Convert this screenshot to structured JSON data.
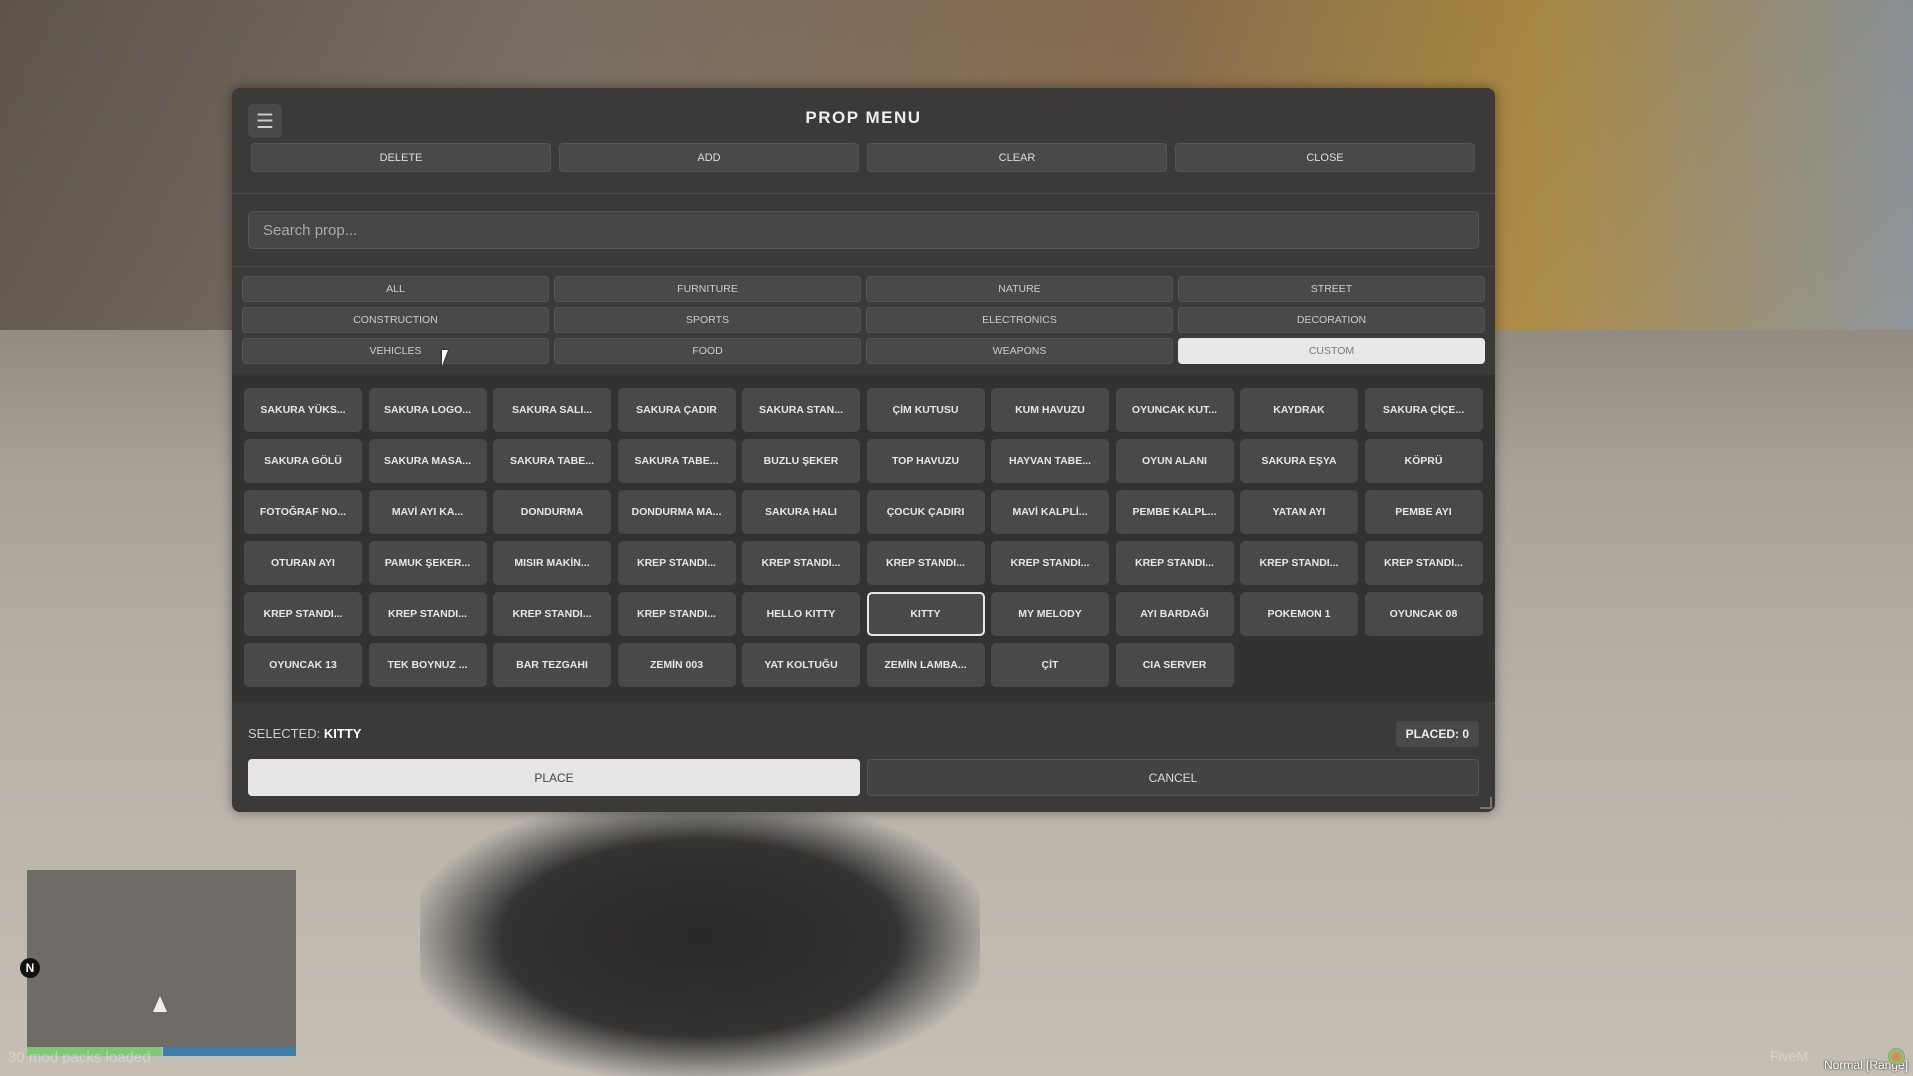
{
  "panel": {
    "title": "PROP MENU",
    "menu_icon": "hamburger-icon"
  },
  "toolbar": {
    "delete": "DELETE",
    "add": "ADD",
    "clear": "CLEAR",
    "close": "CLOSE"
  },
  "search": {
    "placeholder": "Search prop...",
    "value": ""
  },
  "categories": [
    "ALL",
    "FURNITURE",
    "NATURE",
    "STREET",
    "CONSTRUCTION",
    "SPORTS",
    "ELECTRONICS",
    "DECORATION",
    "VEHICLES",
    "FOOD",
    "WEAPONS",
    "CUSTOM"
  ],
  "active_category": "CUSTOM",
  "props": [
    "SAKURA YÜKS...",
    "SAKURA LOGO...",
    "SAKURA SALI...",
    "SAKURA ÇADIR",
    "SAKURA STAN...",
    "ÇİM KUTUSU",
    "KUM HAVUZU",
    "OYUNCAK KUT...",
    "KAYDRAK",
    "SAKURA ÇİÇE...",
    "SAKURA GÖLÜ",
    "SAKURA MASA...",
    "SAKURA TABE...",
    "SAKURA TABE...",
    "BUZLU ŞEKER",
    "TOP HAVUZU",
    "HAYVAN TABE...",
    "OYUN ALANI",
    "SAKURA EŞYA",
    "KÖPRÜ",
    "FOTOĞRAF NO...",
    "MAVİ AYI KA...",
    "DONDURMA",
    "DONDURMA MA...",
    "SAKURA HALI",
    "ÇOCUK ÇADIRI",
    "MAVİ KALPLİ...",
    "PEMBE KALPL...",
    "YATAN AYI",
    "PEMBE AYI",
    "OTURAN AYI",
    "PAMUK ŞEKER...",
    "MISIR MAKİN...",
    "KREP STANDI...",
    "KREP STANDI...",
    "KREP STANDI...",
    "KREP STANDI...",
    "KREP STANDI...",
    "KREP STANDI...",
    "KREP STANDI...",
    "KREP STANDI...",
    "KREP STANDI...",
    "KREP STANDI...",
    "KREP STANDI...",
    "HELLO KITTY",
    "KITTY",
    "MY MELODY",
    "AYI BARDAĞI",
    "POKEMON 1",
    "OYUNCAK 08",
    "OYUNCAK 13",
    "TEK BOYNUZ ...",
    "BAR TEZGAHI",
    "ZEMİN 003",
    "YAT KOLTUĞU",
    "ZEMİN LAMBA...",
    "ÇİT",
    "CIA SERVER"
  ],
  "selected_index": 45,
  "footer": {
    "selected_label": "SELECTED:",
    "selected_value": "KITTY",
    "placed": "PLACED: 0",
    "place": "PLACE",
    "cancel": "CANCEL"
  },
  "hud": {
    "north": "N",
    "mod_text": "30 mod packs loaded",
    "fivem": "FiveM",
    "voice_mode": "Normal [Range]",
    "health_color": "#7fc87a",
    "armor_color": "#3d7ea8"
  }
}
